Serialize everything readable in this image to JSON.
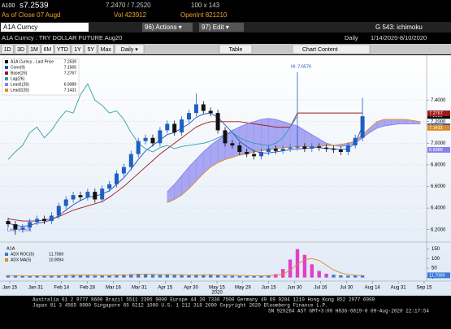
{
  "header": {
    "ticker": "A100",
    "last": "s7.2539",
    "bid_ask": "7.2470 / 7.2520",
    "size": "100 x 143",
    "as_of": "As of Close 07 Augd",
    "volume": "Vol 423912",
    "open_interest": "OpenInt 821210",
    "security": "A1A Curncy",
    "actions": "96) Actions ▾",
    "edit": "97) Edit ▾",
    "template": "G 543: ichimoku",
    "description": "A1A Curncy : TRY DOLLAR FUTURE Aug20",
    "period": "Daily",
    "range": "1/14/2020-8/10/2020"
  },
  "toolbar": {
    "buttons": [
      "1D",
      "3D",
      "1M",
      "6M",
      "YTD",
      "1Y",
      "5Y",
      "Max",
      "Daily ▾"
    ],
    "table": "Table",
    "chart_content": "Chart Content"
  },
  "chart_data": {
    "type": "candlestick",
    "ylim": [
      6.1,
      7.8
    ],
    "yticks": [
      {
        "value": 7.4,
        "label": "7.4000"
      },
      {
        "value": 7.2,
        "label": "7.2000"
      },
      {
        "value": 7.0,
        "label": "7.0000"
      },
      {
        "value": 6.8,
        "label": "6.8000"
      },
      {
        "value": 6.6,
        "label": "6.6000"
      },
      {
        "value": 6.4,
        "label": "6.4000"
      },
      {
        "value": 6.2,
        "label": "6.2000"
      }
    ],
    "xtick_labels": [
      "Jan 15",
      "Jan 31",
      "Feb 14",
      "Feb 28",
      "Mar 16",
      "Mar 31",
      "Apr 15",
      "Apr 30",
      "May 15",
      "May 29",
      "Jun 15",
      "Jun 30",
      "Jul 16",
      "Jul 30",
      "Aug 14",
      "Aug 31",
      "Sep 15"
    ],
    "year_label": "2020",
    "annotations": {
      "low": "Low: 6.1531",
      "high": "Hi: 7.6576"
    },
    "price": {
      "name": "A1A Curncy - Last Price",
      "last": 7.2539,
      "up_color": "#1f5fbf",
      "down_color": "#111111",
      "open": [
        6.28,
        6.25,
        6.2,
        6.22,
        6.27,
        6.3,
        6.28,
        6.33,
        6.42,
        6.48,
        6.52,
        6.5,
        6.55,
        6.48,
        6.58,
        6.62,
        6.72,
        6.78,
        6.9,
        7.02,
        7.05,
        7.0,
        7.12,
        7.18,
        7.1,
        7.22,
        7.28,
        7.36,
        7.3,
        7.28,
        7.12,
        7.0,
        6.98,
        6.92,
        6.9,
        6.88,
        6.92,
        6.95,
        6.93,
        6.95,
        6.96,
        6.97,
        6.95,
        6.97,
        6.96,
        6.95,
        6.94,
        6.92,
        6.98,
        7.05
      ],
      "high": [
        6.31,
        6.28,
        6.25,
        6.3,
        6.33,
        6.33,
        6.36,
        6.45,
        6.51,
        6.55,
        6.55,
        6.58,
        6.58,
        6.61,
        6.65,
        6.75,
        6.81,
        6.93,
        7.05,
        7.08,
        7.08,
        7.15,
        7.21,
        7.21,
        7.25,
        7.31,
        7.46,
        7.39,
        7.33,
        7.31,
        7.15,
        7.03,
        7.01,
        6.95,
        6.93,
        6.95,
        6.98,
        6.98,
        6.98,
        6.99,
        7.6576,
        7.0,
        7.0,
        7.0,
        6.99,
        6.98,
        6.97,
        7.01,
        7.08,
        7.42
      ],
      "low": [
        6.22,
        6.1531,
        6.17,
        6.19,
        6.24,
        6.25,
        6.25,
        6.3,
        6.39,
        6.45,
        6.47,
        6.47,
        6.45,
        6.45,
        6.55,
        6.59,
        6.69,
        6.75,
        6.87,
        6.99,
        6.97,
        6.97,
        7.09,
        7.07,
        7.07,
        7.19,
        7.25,
        7.27,
        7.25,
        7.09,
        6.97,
        6.95,
        6.89,
        6.87,
        6.85,
        6.85,
        6.89,
        6.9,
        6.9,
        6.92,
        6.93,
        6.92,
        6.92,
        6.93,
        6.92,
        6.91,
        6.89,
        6.89,
        6.95,
        7.02
      ],
      "close": [
        6.25,
        6.2,
        6.22,
        6.27,
        6.3,
        6.28,
        6.33,
        6.42,
        6.48,
        6.52,
        6.5,
        6.55,
        6.48,
        6.58,
        6.62,
        6.72,
        6.78,
        6.9,
        7.02,
        7.05,
        7.0,
        7.12,
        7.18,
        7.1,
        7.22,
        7.28,
        7.36,
        7.3,
        7.28,
        7.12,
        7.0,
        6.98,
        6.92,
        6.9,
        6.88,
        6.92,
        6.95,
        6.93,
        6.95,
        6.96,
        6.97,
        6.95,
        6.97,
        6.96,
        6.95,
        6.94,
        6.92,
        6.98,
        7.05,
        7.25
      ]
    },
    "series": [
      {
        "name": "Conv(9)",
        "color": "#1f4fbf",
        "last": 7.1565,
        "values": [
          6.26,
          6.24,
          6.23,
          6.24,
          6.26,
          6.27,
          6.29,
          6.33,
          6.38,
          6.43,
          6.47,
          6.5,
          6.51,
          6.53,
          6.56,
          6.62,
          6.68,
          6.76,
          6.85,
          6.93,
          6.98,
          7.03,
          7.08,
          7.1,
          7.14,
          7.18,
          7.24,
          7.27,
          7.28,
          7.24,
          7.17,
          7.1,
          7.02,
          6.97,
          6.93,
          6.91,
          6.91,
          6.92,
          6.93,
          6.94,
          6.95,
          6.95,
          6.96,
          6.96,
          6.95,
          6.95,
          6.94,
          6.95,
          7.0,
          7.16
        ]
      },
      {
        "name": "Base(26)",
        "color": "#a01818",
        "last": 7.2767,
        "values": [
          6.3,
          6.29,
          6.28,
          6.28,
          6.28,
          6.29,
          6.3,
          6.32,
          6.35,
          6.38,
          6.4,
          6.42,
          6.44,
          6.46,
          6.5,
          6.55,
          6.6,
          6.66,
          6.72,
          6.78,
          6.84,
          6.9,
          6.95,
          7.0,
          7.05,
          7.1,
          7.15,
          7.18,
          7.2,
          7.2,
          7.2,
          7.2,
          7.2,
          7.19,
          7.18,
          7.17,
          7.16,
          7.15,
          7.15,
          7.15,
          7.28,
          7.28,
          7.28,
          7.28,
          7.28,
          7.28,
          7.28,
          7.28,
          7.28,
          7.28
        ]
      },
      {
        "name": "Lag(26)",
        "color": "#2aa0a8",
        "values": [
          6.85,
          6.92,
          6.98,
          7.1,
          7.15,
          7.05,
          7.12,
          7.22,
          7.3,
          7.28,
          7.45,
          7.55,
          7.4,
          7.35,
          7.28,
          7.3,
          7.22,
          7.1,
          7.0,
          6.95,
          6.92,
          6.96,
          6.98,
          6.95,
          6.97,
          6.98,
          6.99,
          7.0,
          7.02,
          7.05,
          7.08,
          7.1,
          7.05,
          7.02,
          7.0,
          6.99,
          6.98,
          7.0,
          7.05,
          7.15,
          7.25,
          null,
          null,
          null,
          null,
          null,
          null,
          null,
          null,
          null
        ]
      },
      {
        "name": "Lead1(26)",
        "color": "#8a80e8",
        "last": 6.9389,
        "values": [
          null,
          null,
          null,
          null,
          null,
          null,
          null,
          null,
          null,
          null,
          null,
          null,
          null,
          null,
          null,
          null,
          null,
          null,
          null,
          null,
          null,
          null,
          6.55,
          6.62,
          6.7,
          6.78,
          6.85,
          6.92,
          6.98,
          7.03,
          7.08,
          7.12,
          7.15,
          7.18,
          7.2,
          7.22,
          7.23,
          7.22,
          7.2,
          7.18,
          7.16,
          7.12,
          7.08,
          7.04,
          7.0,
          6.98,
          6.97,
          6.98,
          7.0,
          7.05,
          7.1,
          7.14,
          7.16,
          7.17,
          7.18,
          7.18,
          7.18,
          7.18
        ]
      },
      {
        "name": "Lead2(26)",
        "color": "#e08a1e",
        "last": 7.1431,
        "values": [
          null,
          null,
          null,
          null,
          null,
          null,
          null,
          null,
          null,
          null,
          null,
          null,
          null,
          null,
          null,
          null,
          null,
          null,
          null,
          null,
          null,
          null,
          6.45,
          6.48,
          6.52,
          6.58,
          6.65,
          6.72,
          6.78,
          6.82,
          6.85,
          6.87,
          6.89,
          6.9,
          6.92,
          6.93,
          6.94,
          6.95,
          6.96,
          6.96,
          6.97,
          6.97,
          6.97,
          6.97,
          6.98,
          6.98,
          6.99,
          7.0,
          7.02,
          7.08,
          7.14,
          7.2,
          7.22,
          7.22,
          7.22,
          7.22,
          7.21,
          7.2
        ]
      }
    ],
    "cloud_color": "#8f8cf0",
    "lower": {
      "title": "A1A",
      "ylim": [
        -10,
        170
      ],
      "yticks": [
        0,
        50,
        100,
        150
      ],
      "bars": {
        "name": "ADX ROC(5)",
        "last": 11.7069,
        "values": [
          12,
          10,
          8,
          9,
          11,
          10,
          9,
          12,
          14,
          15,
          13,
          12,
          10,
          11,
          13,
          15,
          16,
          18,
          20,
          17,
          15,
          14,
          16,
          15,
          13,
          12,
          14,
          16,
          15,
          12,
          10,
          9,
          8,
          8,
          9,
          10,
          12,
          18,
          45,
          95,
          150,
          120,
          70,
          35,
          20,
          15,
          12,
          10,
          11,
          12
        ],
        "colors": [
          "#3a7bd5",
          "#3a7bd5",
          "#3a7bd5",
          "#3a7bd5",
          "#3a7bd5",
          "#3a7bd5",
          "#3a7bd5",
          "#3a7bd5",
          "#3a7bd5",
          "#3a7bd5",
          "#3a7bd5",
          "#3a7bd5",
          "#3a7bd5",
          "#3a7bd5",
          "#3a7bd5",
          "#3a7bd5",
          "#3a7bd5",
          "#3a7bd5",
          "#3a7bd5",
          "#3a7bd5",
          "#3a7bd5",
          "#3a7bd5",
          "#3a7bd5",
          "#3a7bd5",
          "#3a7bd5",
          "#3a7bd5",
          "#3a7bd5",
          "#3a7bd5",
          "#3a7bd5",
          "#3a7bd5",
          "#3a7bd5",
          "#3a7bd5",
          "#3a7bd5",
          "#3a7bd5",
          "#3a7bd5",
          "#3a7bd5",
          "#3a7bd5",
          "#e040c8",
          "#e040c8",
          "#e040c8",
          "#e040c8",
          "#e040c8",
          "#e040c8",
          "#e040c8",
          "#e040c8",
          "#3a7bd5",
          "#3a7bd5",
          "#3a7bd5",
          "#3a7bd5",
          "#3a7bd5"
        ]
      },
      "line": {
        "name": "ADX MA(5)",
        "color": "#e08a1e",
        "last": 10.9094,
        "values": [
          10,
          10,
          10,
          9,
          9,
          10,
          10,
          10,
          11,
          12,
          13,
          13,
          13,
          12,
          12,
          13,
          14,
          15,
          17,
          18,
          17,
          16,
          16,
          15,
          15,
          14,
          14,
          14,
          15,
          14,
          13,
          12,
          11,
          10,
          9,
          9,
          10,
          12,
          18,
          38,
          70,
          95,
          100,
          90,
          65,
          40,
          25,
          16,
          12,
          11
        ]
      }
    }
  },
  "footer": [
    "Australia 61 2 9777 8600 Brazil 5511 2395 9000 Europe 44 20 7330 7500 Germany 49 69 9204 1210 Hong Kong 852 2977 6000",
    "Japan 81 3 4565 8900   Singapore 65 6212 1000   U.S. 1 212 318 2000   Copyright 2020 Bloomberg Finance L.P.",
    "SN 926264 AST GMT+3:00 H836-6819-0 09-Aug-2020 22:17:54"
  ]
}
